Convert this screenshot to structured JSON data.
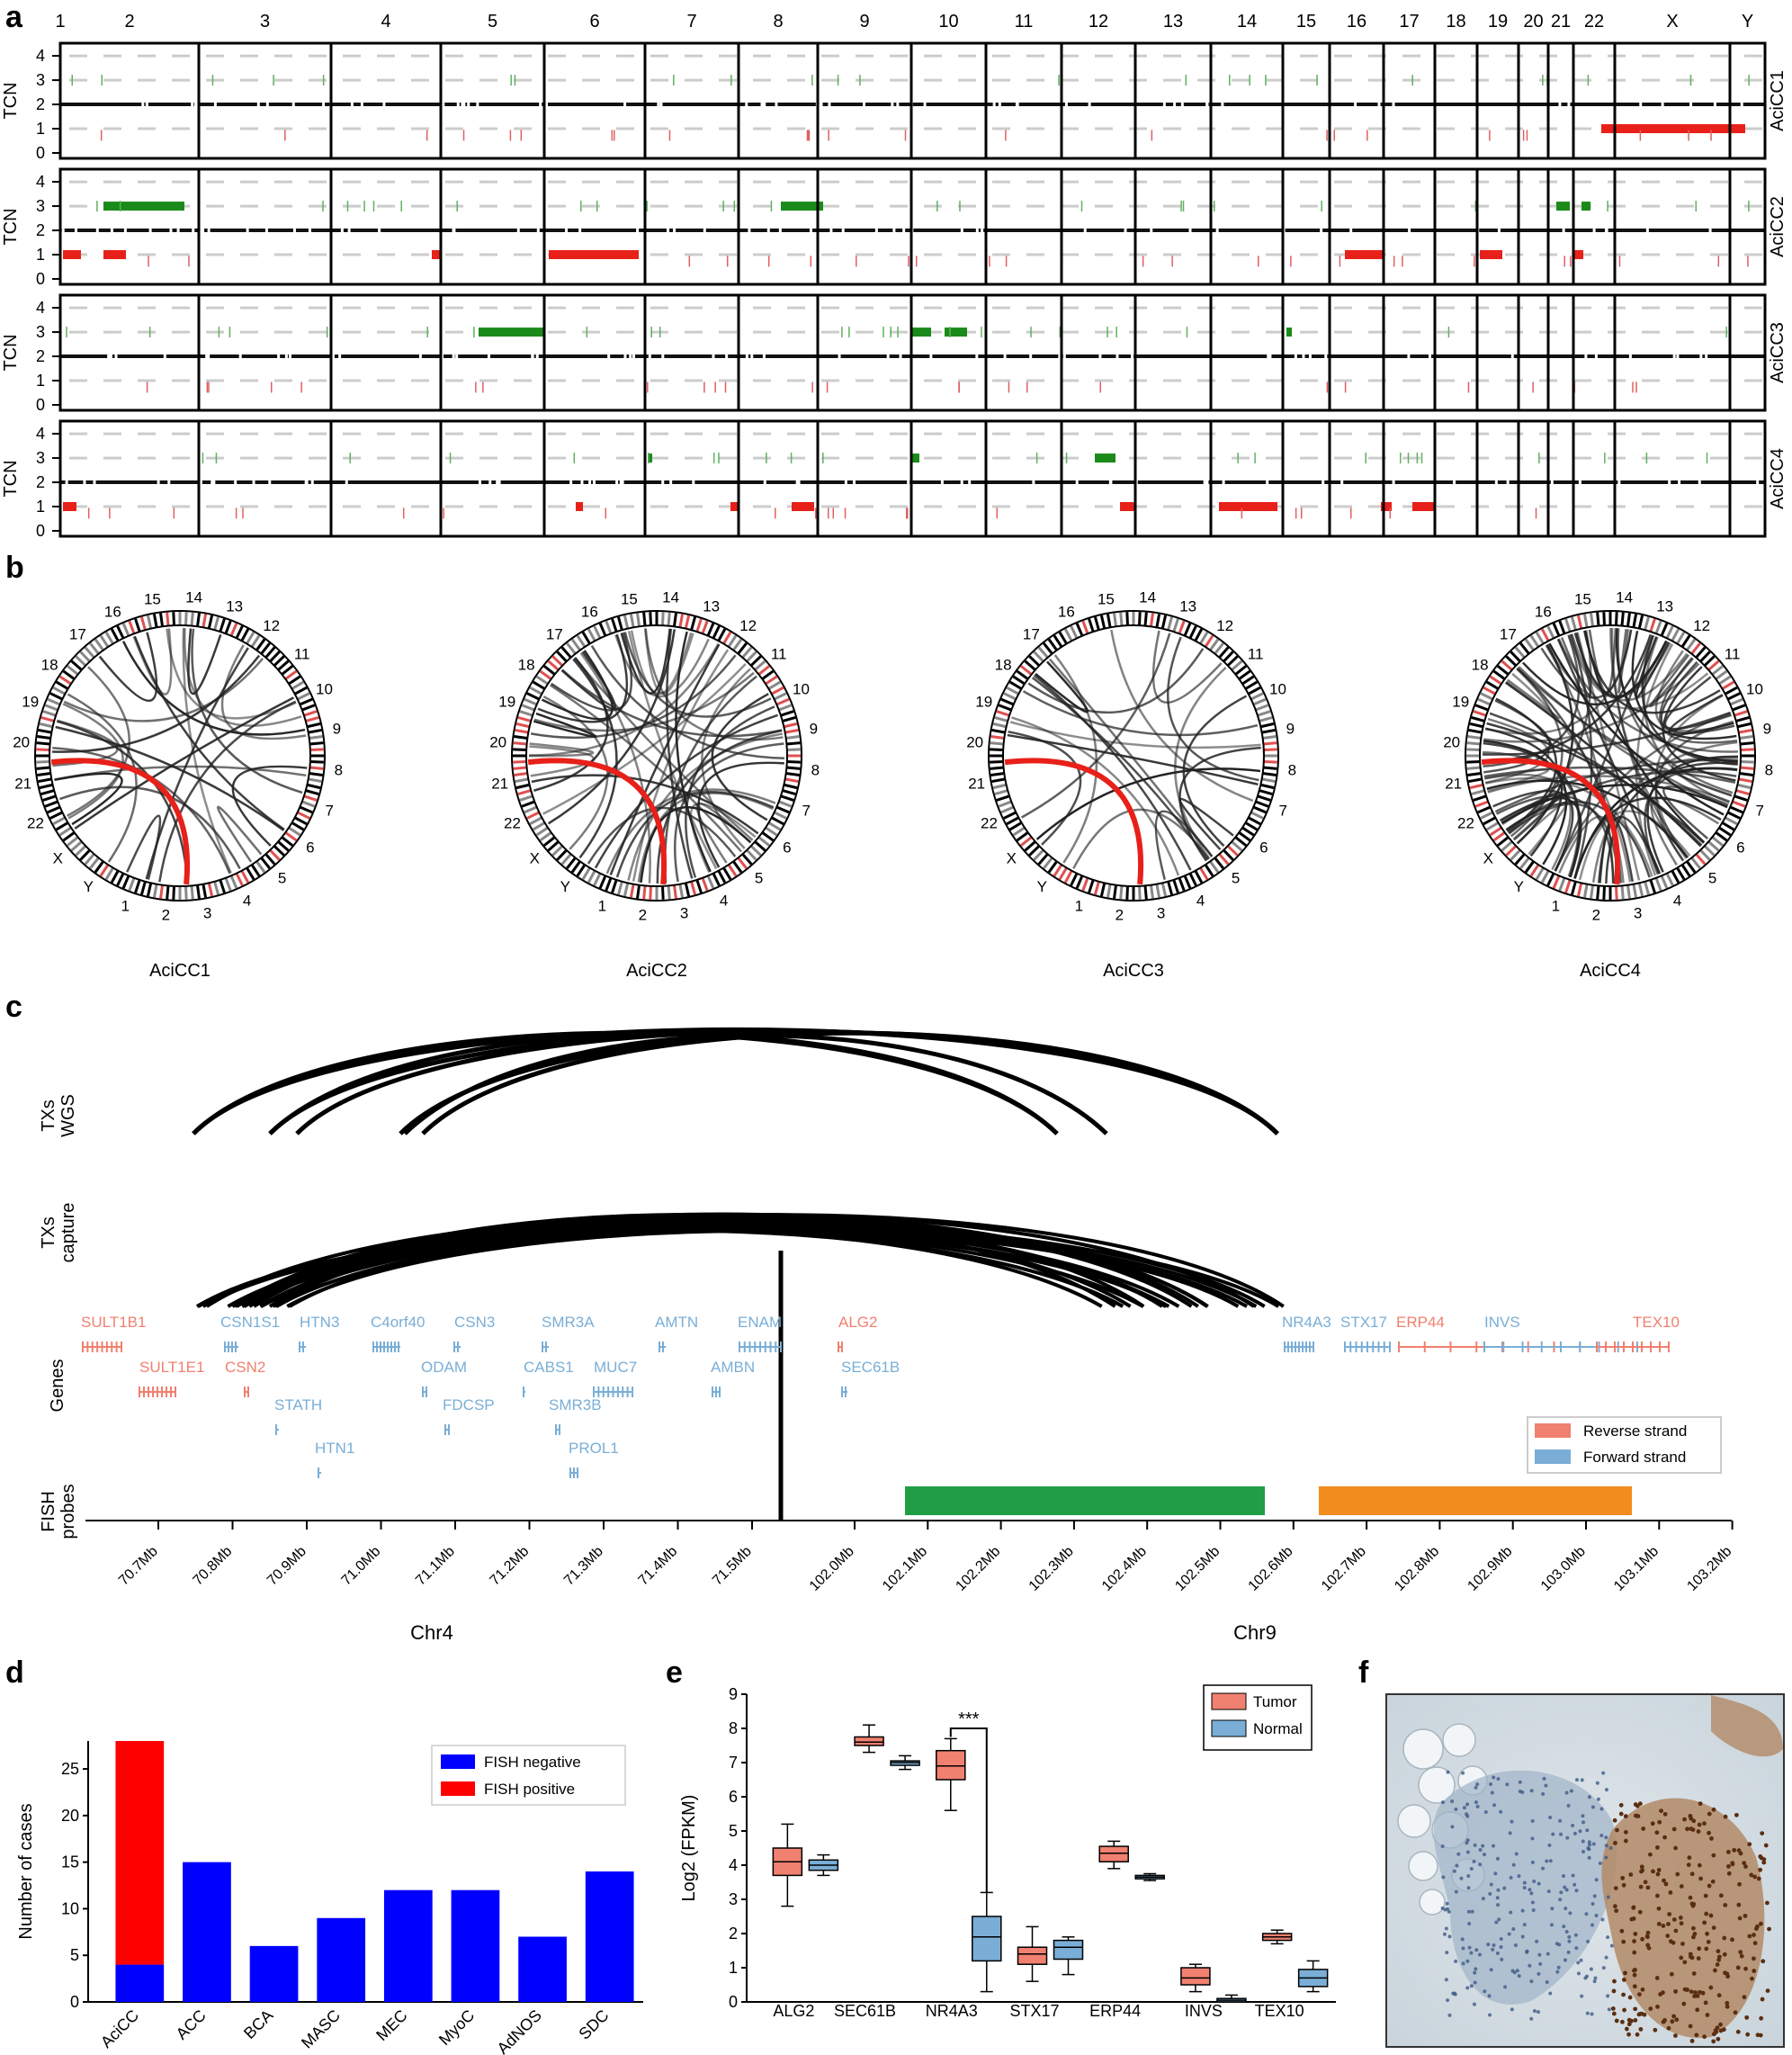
{
  "panels": {
    "a": "a",
    "b": "b",
    "c": "c",
    "d": "d",
    "e": "e",
    "f": "f"
  },
  "panel_a": {
    "chromosomes": [
      "1",
      "2",
      "3",
      "4",
      "5",
      "6",
      "7",
      "8",
      "9",
      "10",
      "11",
      "12",
      "13",
      "14",
      "15",
      "16",
      "17",
      "18",
      "19",
      "20",
      "21",
      "22",
      "X",
      "Y"
    ],
    "ylabel": "TCN",
    "yticks": [
      "0",
      "1",
      "2",
      "3",
      "4"
    ],
    "samples": [
      "AciCC1",
      "AciCC2",
      "AciCC3",
      "AciCC4"
    ]
  },
  "panel_b": {
    "samples": [
      "AciCC1",
      "AciCC2",
      "AciCC3",
      "AciCC4"
    ],
    "ring_labels": [
      "1",
      "2",
      "3",
      "4",
      "5",
      "6",
      "7",
      "8",
      "9",
      "10",
      "11",
      "12",
      "13",
      "14",
      "15",
      "16",
      "17",
      "18",
      "19",
      "20",
      "21",
      "22",
      "X",
      "Y"
    ]
  },
  "panel_c": {
    "track_wgs": "TXs WGS",
    "track_capture": "TXs capture",
    "track_genes": "Genes",
    "track_fish": "FISH probes",
    "chr4_label": "Chr4",
    "chr9_label": "Chr9",
    "chr4_ticks": [
      "70.7Mb",
      "70.8Mb",
      "70.9Mb",
      "71.0Mb",
      "71.1Mb",
      "71.2Mb",
      "71.3Mb",
      "71.4Mb",
      "71.5Mb"
    ],
    "chr9_ticks": [
      "102.0Mb",
      "102.1Mb",
      "102.2Mb",
      "102.3Mb",
      "102.4Mb",
      "102.5Mb",
      "102.6Mb",
      "102.7Mb",
      "102.8Mb",
      "102.9Mb",
      "103.0Mb",
      "103.1Mb",
      "103.2Mb"
    ],
    "legend_reverse": "Reverse strand",
    "legend_forward": "Forward strand",
    "colors": {
      "reverse": "#f08070",
      "forward": "#7aaed6",
      "probe_green": "#1f9e45",
      "probe_orange": "#f28c1e"
    },
    "genes_reverse": [
      "SULT1B1",
      "SULT1E1",
      "CSN2",
      "ALG2",
      "ERP44",
      "TEX10"
    ],
    "genes_forward": [
      "CSN1S1",
      "HTN3",
      "C4orf40",
      "CSN3",
      "SMR3A",
      "AMTN",
      "ENAM",
      "ODAM",
      "CABS1",
      "MUC7",
      "AMBN",
      "SEC61B",
      "STATH",
      "FDCSP",
      "SMR3B",
      "HTN1",
      "PROL1",
      "NR4A3",
      "STX17",
      "INVS"
    ]
  },
  "panel_d": {
    "chart_data": {
      "type": "bar",
      "stacked": true,
      "categories": [
        "AciCC",
        "ACC",
        "BCA",
        "MASC",
        "MEC",
        "MyoC",
        "AdNOS",
        "SDC"
      ],
      "series": [
        {
          "name": "FISH negative",
          "values": [
            4,
            15,
            6,
            9,
            12,
            12,
            7,
            14
          ],
          "color": "#0000ff"
        },
        {
          "name": "FISH positive",
          "values": [
            24,
            0,
            0,
            0,
            0,
            0,
            0,
            0
          ],
          "color": "#ff0000"
        }
      ],
      "ylabel": "Number of cases",
      "ylim": [
        0,
        28
      ],
      "yticks": [
        "0",
        "5",
        "10",
        "15",
        "20",
        "25"
      ],
      "legend": "top-right"
    }
  },
  "panel_e": {
    "chart_data": {
      "type": "box",
      "categories": [
        "ALG2",
        "SEC61B",
        "NR4A3",
        "STX17",
        "ERP44",
        "INVS",
        "TEX10"
      ],
      "ylabel": "Log2 (FPKM)",
      "ylim": [
        0,
        9
      ],
      "yticks": [
        "0",
        "1",
        "2",
        "3",
        "4",
        "5",
        "6",
        "7",
        "8",
        "9"
      ],
      "significance": "***",
      "legend": "top-right",
      "series": [
        {
          "name": "Tumor",
          "color": "#f08070",
          "boxes": [
            [
              2.8,
              3.7,
              4.1,
              4.5,
              5.2
            ],
            [
              7.3,
              7.5,
              7.6,
              7.75,
              8.1
            ],
            [
              5.6,
              6.5,
              6.9,
              7.35,
              7.7
            ],
            [
              0.6,
              1.1,
              1.4,
              1.6,
              2.2
            ],
            [
              3.9,
              4.1,
              4.35,
              4.55,
              4.7
            ],
            [
              0.3,
              0.5,
              0.7,
              1.0,
              1.1
            ],
            [
              1.7,
              1.8,
              1.9,
              2.0,
              2.1
            ]
          ]
        },
        {
          "name": "Normal",
          "color": "#7aaed6",
          "boxes": [
            [
              3.7,
              3.85,
              4.0,
              4.15,
              4.3
            ],
            [
              6.8,
              6.92,
              7.0,
              7.05,
              7.2
            ],
            [
              0.3,
              1.2,
              1.9,
              2.5,
              3.2
            ],
            [
              0.8,
              1.25,
              1.6,
              1.8,
              1.9
            ],
            [
              3.55,
              3.6,
              3.65,
              3.7,
              3.75
            ],
            [
              0.0,
              0.0,
              0.05,
              0.1,
              0.2
            ],
            [
              0.3,
              0.45,
              0.7,
              0.95,
              1.2
            ]
          ]
        }
      ]
    }
  },
  "panel_f": {
    "image": "immunohistochemistry-micrograph"
  }
}
